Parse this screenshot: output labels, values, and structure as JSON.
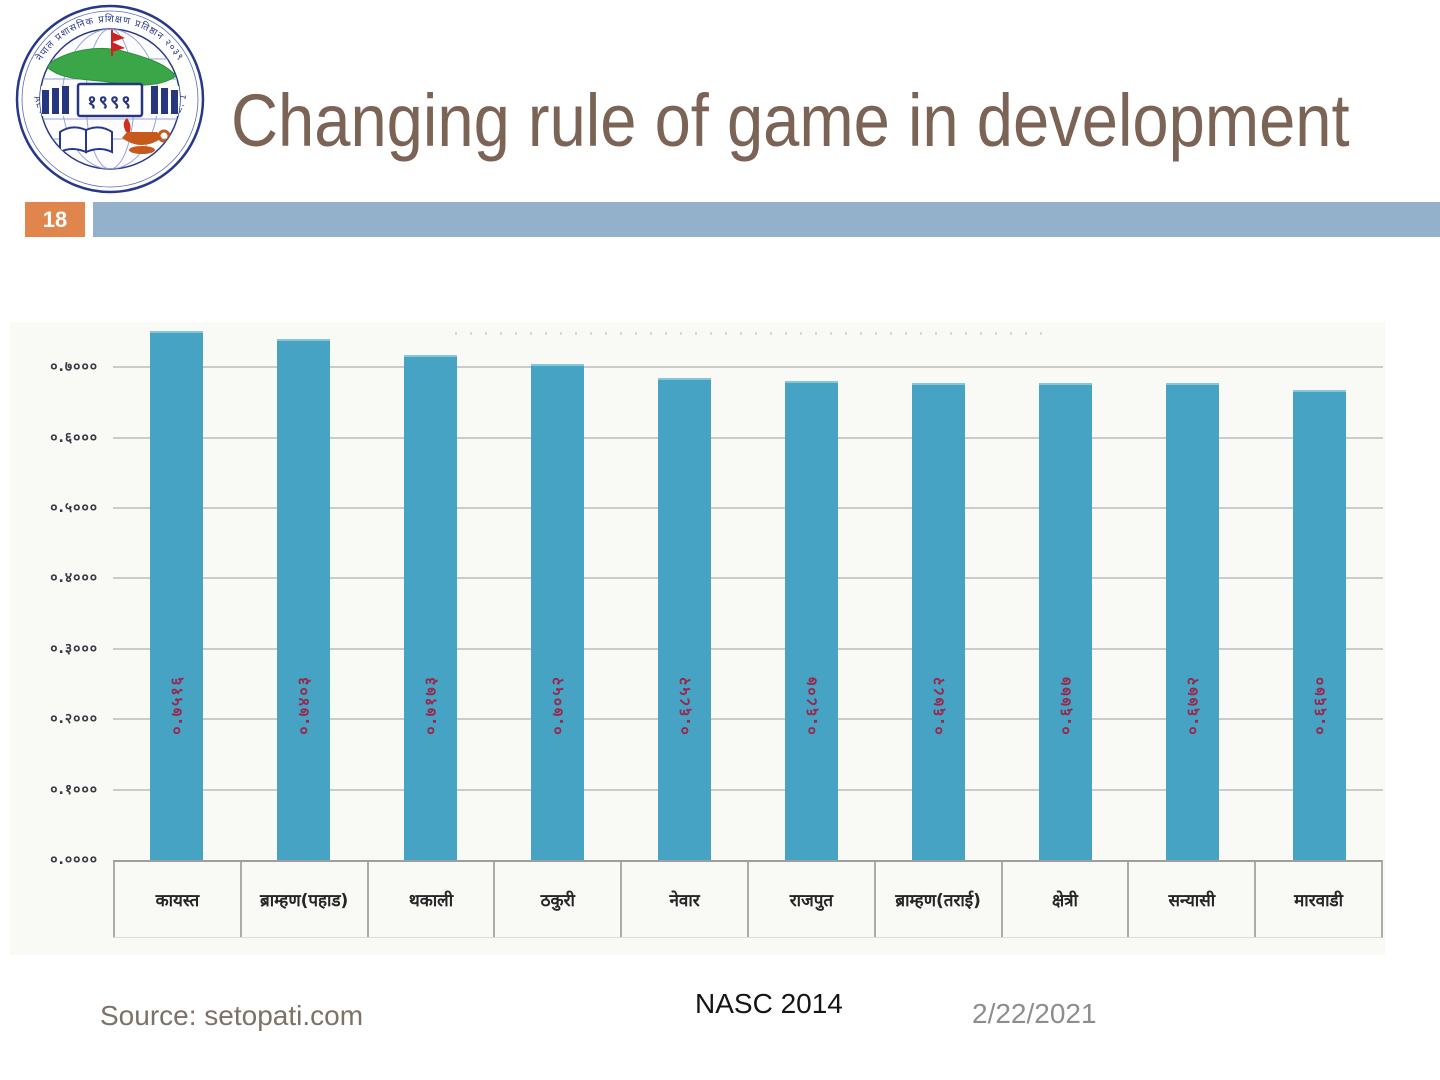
{
  "slide": {
    "title": "Changing rule of game in development",
    "number": "18"
  },
  "logo": {
    "ring_text_top": "नेपाल प्रशासनिक प्रशिक्षण प्रतिष्ठान २०३९",
    "ring_text_bottom": "NEPAL ADMINISTRATIVE STAFF COLLEGE, 1982",
    "center_text": "१९९९"
  },
  "chart_data": {
    "type": "bar",
    "title": "",
    "xlabel": "",
    "ylabel": "",
    "categories": [
      "कायस्त",
      "ब्राम्हण(पहाड)",
      "थकाली",
      "ठकुरी",
      "नेवार",
      "राजपुत",
      "ब्राम्हण(तराई)",
      "क्षेत्री",
      "सन्यासी",
      "मारवाडी"
    ],
    "values": [
      0.7516,
      0.7403,
      0.7173,
      0.7052,
      0.6852,
      0.6807,
      0.6782,
      0.6777,
      0.6772,
      0.667
    ],
    "bar_value_labels": [
      "०.७५१६",
      "०.७४०३",
      "०.७१७३",
      "०.७०५२",
      "०.६८५२",
      "०.६८०७",
      "०.६७८२",
      "०.६७७७",
      "०.६७७२",
      "०.६६७०"
    ],
    "y_ticks": [
      0.7,
      0.6,
      0.5,
      0.4,
      0.3,
      0.2,
      0.1,
      0.0
    ],
    "y_tick_labels": [
      "०.७०००",
      "०.६०००",
      "०.५०००",
      "०.४०००",
      "०.३०००",
      "०.२०००",
      "०.१०००",
      "०.००००"
    ],
    "ylim": [
      0,
      0.76
    ],
    "grid": "horizontal",
    "legend": "none",
    "bar_color": "#47a3c3",
    "value_label_color": "#97294f",
    "value_label_rotation": "vertical-bottom-to-top"
  },
  "footer": {
    "source": "Source: setopati.com",
    "org_year": "NASC 2014",
    "date": "2/22/2021"
  },
  "colors": {
    "title_text": "#7b6355",
    "header_bar": "#93b1cb",
    "slide_number_bg": "#e0854b",
    "slide_number_text": "#ffffff",
    "chart_background": "#f9f9f6",
    "gridline": "#cbcbcb",
    "axis_tick_text": "#3b3b45",
    "category_text": "#262626",
    "logo_blue": "#27388a",
    "logo_green": "#3aa648",
    "logo_flag_red": "#cc2222",
    "logo_lamp_orange": "#c65a1d"
  }
}
